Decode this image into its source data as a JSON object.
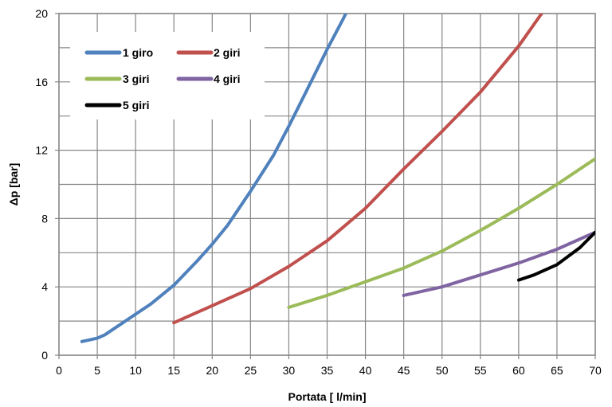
{
  "chart_data": {
    "type": "line",
    "title": "",
    "xlabel": "Portata [ l/min]",
    "ylabel": "Δp [bar]",
    "xlim": [
      0,
      70
    ],
    "ylim": [
      0,
      20
    ],
    "xticks": [
      0,
      5,
      10,
      15,
      20,
      25,
      30,
      35,
      40,
      45,
      50,
      55,
      60,
      65,
      70
    ],
    "yticks": [
      0,
      4,
      8,
      12,
      16,
      20
    ],
    "grid": true,
    "legend_position": "top-left",
    "series": [
      {
        "name": "1 giro",
        "color": "#4f81bd",
        "x": [
          3,
          4,
          5,
          6,
          7,
          8,
          10,
          12,
          15,
          18,
          20,
          22,
          25,
          28,
          30,
          32,
          35,
          37,
          38
        ],
        "y": [
          0.8,
          0.9,
          1.0,
          1.2,
          1.5,
          1.8,
          2.4,
          3.0,
          4.1,
          5.5,
          6.5,
          7.6,
          9.6,
          11.7,
          13.4,
          15.2,
          17.9,
          19.6,
          20.5
        ]
      },
      {
        "name": "2 giri",
        "color": "#c0504d",
        "x": [
          15,
          20,
          25,
          30,
          35,
          40,
          45,
          50,
          55,
          60,
          63
        ],
        "y": [
          1.9,
          2.9,
          3.9,
          5.2,
          6.7,
          8.6,
          10.9,
          13.1,
          15.4,
          18.1,
          20.0
        ]
      },
      {
        "name": "3 giri",
        "color": "#9bbb59",
        "x": [
          30,
          35,
          40,
          45,
          50,
          55,
          60,
          65,
          70
        ],
        "y": [
          2.8,
          3.5,
          4.3,
          5.1,
          6.1,
          7.3,
          8.6,
          10.0,
          11.5
        ]
      },
      {
        "name": "4 giri",
        "color": "#8064a2",
        "x": [
          45,
          50,
          55,
          60,
          65,
          70
        ],
        "y": [
          3.5,
          4.0,
          4.7,
          5.4,
          6.2,
          7.2
        ]
      },
      {
        "name": "5 giri",
        "color": "#000000",
        "x": [
          60,
          62,
          65,
          68,
          70
        ],
        "y": [
          4.4,
          4.7,
          5.3,
          6.3,
          7.2
        ]
      }
    ]
  }
}
